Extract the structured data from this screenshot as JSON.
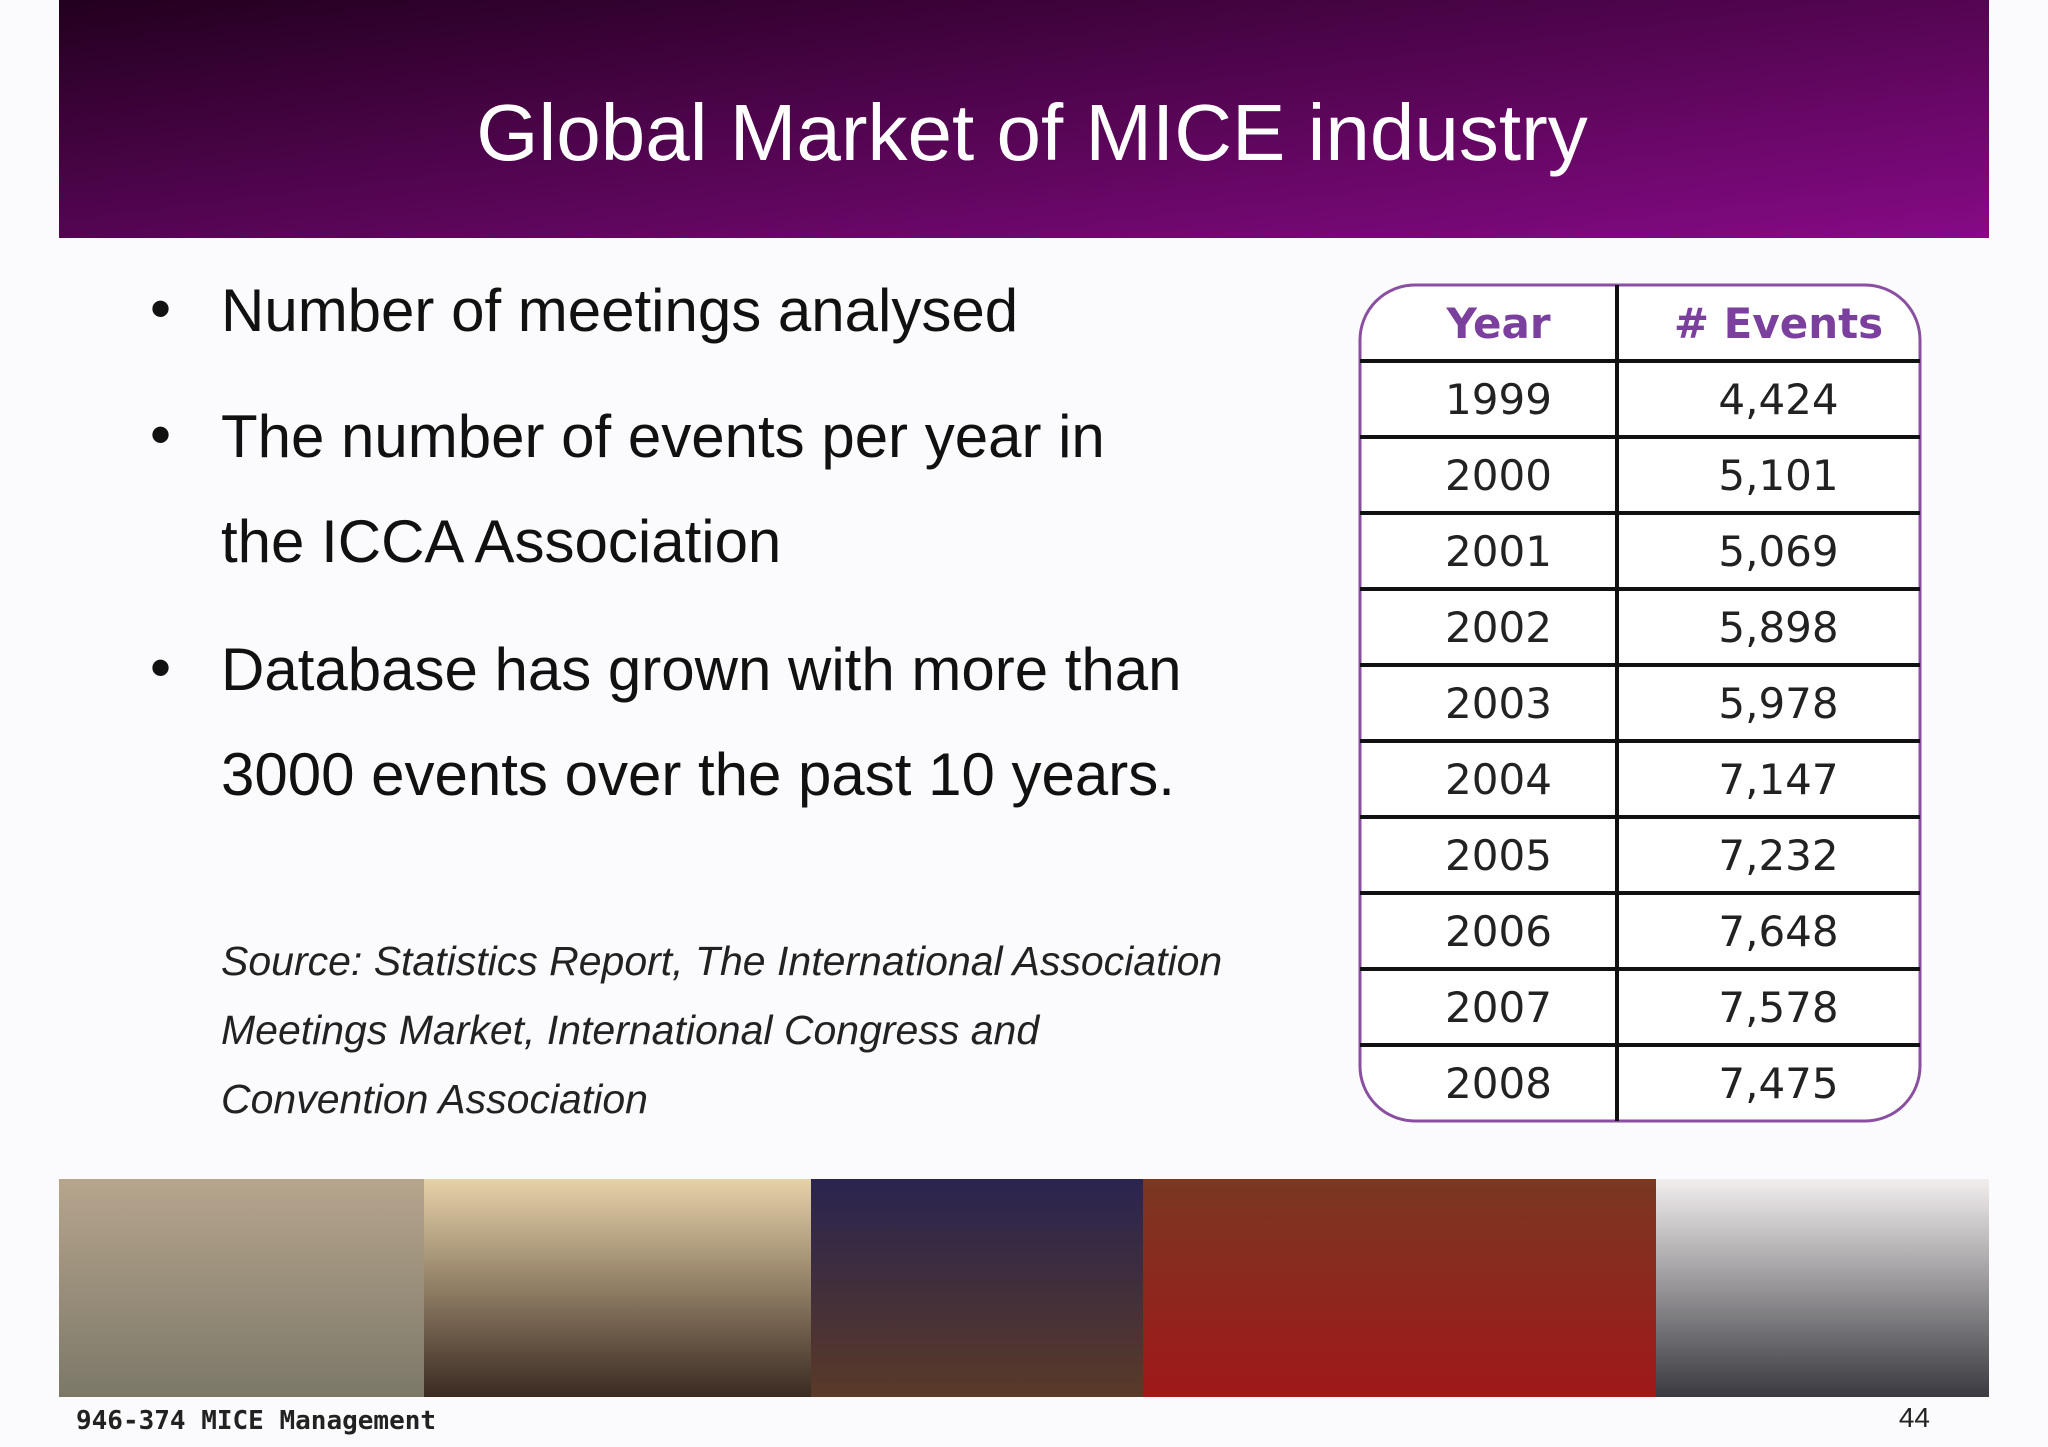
{
  "header": {
    "title": "Global Market of MICE industry"
  },
  "bullets": [
    "Number of meetings analysed",
    "The number of events per year in",
    "the ICCA Association",
    "Database has grown with more than",
    "3000 events over the past 10 years."
  ],
  "source": [
    "Source: Statistics Report, The International Association",
    "Meetings Market, International Congress and",
    "Convention Association"
  ],
  "table": {
    "headers": [
      "Year",
      "# Events"
    ],
    "rows": [
      [
        "1999",
        "4,424"
      ],
      [
        "2000",
        "5,101"
      ],
      [
        "2001",
        "5,069"
      ],
      [
        "2002",
        "5,898"
      ],
      [
        "2003",
        "5,978"
      ],
      [
        "2004",
        "7,147"
      ],
      [
        "2005",
        "7,232"
      ],
      [
        "2006",
        "7,648"
      ],
      [
        "2007",
        "7,578"
      ],
      [
        "2008",
        "7,475"
      ]
    ]
  },
  "footer": {
    "course": "946-374 MICE Management",
    "page": "44"
  }
}
